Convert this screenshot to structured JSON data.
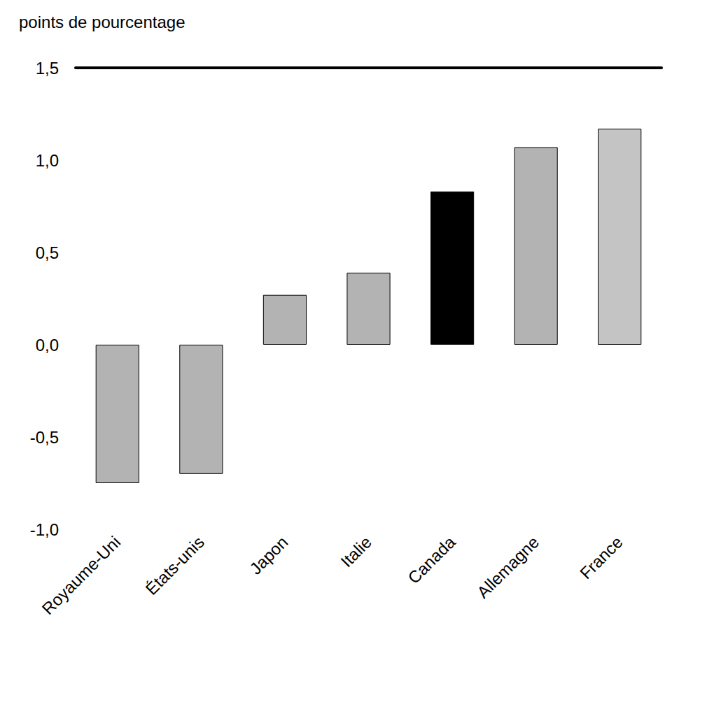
{
  "chart_data": {
    "type": "bar",
    "ylabel": "points de pourcentage",
    "categories": [
      "Royaume-Uni",
      "États-unis",
      "Japon",
      "Italie",
      "Canada",
      "Allemagne",
      "France"
    ],
    "values": [
      -0.75,
      -0.7,
      0.27,
      0.39,
      0.83,
      1.07,
      1.17
    ],
    "colors": [
      "#b3b3b3",
      "#b3b3b3",
      "#b3b3b3",
      "#b3b3b3",
      "#000000",
      "#b3b3b3",
      "#c4c4c4"
    ],
    "ylim": [
      -1.0,
      1.5
    ],
    "yticks": [
      {
        "value": -1.0,
        "label": "-1,0"
      },
      {
        "value": -0.5,
        "label": "-0,5"
      },
      {
        "value": 0,
        "label": "0,0"
      },
      {
        "value": 0.5,
        "label": "0,5"
      },
      {
        "value": 1.0,
        "label": "1,0"
      },
      {
        "value": 1.5,
        "label": "1,5"
      }
    ],
    "grid": false
  }
}
